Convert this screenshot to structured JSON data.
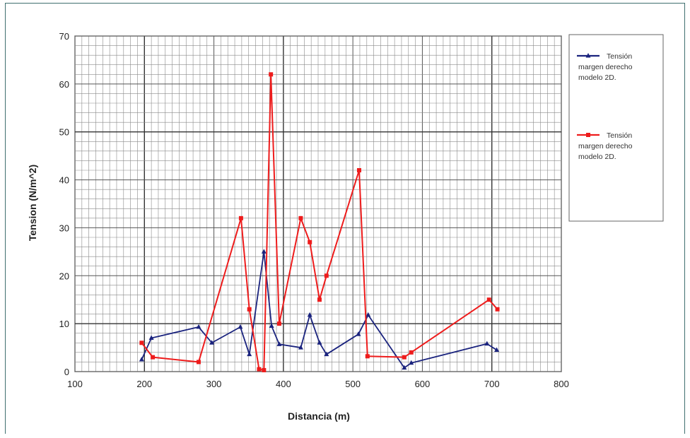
{
  "chart_data": {
    "type": "line",
    "xlabel": "Distancia (m)",
    "ylabel": "Tension (N/m^2)",
    "xlim": [
      100,
      800
    ],
    "ylim": [
      0,
      70
    ],
    "x_ticks": [
      "100",
      "200",
      "300",
      "400",
      "500",
      "600",
      "700",
      "800"
    ],
    "y_ticks": [
      "0",
      "10",
      "20",
      "30",
      "40",
      "50",
      "60",
      "70"
    ],
    "grid": true,
    "legend_position": "right",
    "series": [
      {
        "name": "Tensión margen derecho modelo 2D.",
        "legend_lines": [
          "Tensión",
          "margen derecho",
          "modelo 2D."
        ],
        "color": "#1a237e",
        "marker": "triangle",
        "points": [
          [
            196,
            2.5
          ],
          [
            210,
            7
          ],
          [
            278,
            9.3
          ],
          [
            297,
            6
          ],
          [
            338,
            9.3
          ],
          [
            351,
            3.6
          ],
          [
            372,
            25
          ],
          [
            383,
            9.5
          ],
          [
            394,
            5.7
          ],
          [
            425,
            5
          ],
          [
            438,
            11.8
          ],
          [
            452,
            6
          ],
          [
            462,
            3.6
          ],
          [
            508,
            7.8
          ],
          [
            522,
            11.8
          ],
          [
            574,
            0.8
          ],
          [
            584,
            1.8
          ],
          [
            693,
            5.8
          ],
          [
            707,
            4.5
          ]
        ]
      },
      {
        "name": "Tensión margen derecho modelo 2D.",
        "legend_lines": [
          "Tensión",
          "margen derecho",
          "modelo 2D."
        ],
        "color": "#ee1c1c",
        "marker": "square",
        "points": [
          [
            196,
            6
          ],
          [
            212,
            3
          ],
          [
            278,
            2
          ],
          [
            339,
            32
          ],
          [
            351,
            13
          ],
          [
            365,
            0.5
          ],
          [
            372,
            0.3
          ],
          [
            382,
            62
          ],
          [
            394,
            10
          ],
          [
            425,
            32
          ],
          [
            438,
            27
          ],
          [
            452,
            15
          ],
          [
            462,
            20
          ],
          [
            509,
            42
          ],
          [
            521,
            3.2
          ],
          [
            574,
            3
          ],
          [
            584,
            4
          ],
          [
            696,
            15
          ],
          [
            708,
            13
          ]
        ]
      }
    ]
  }
}
